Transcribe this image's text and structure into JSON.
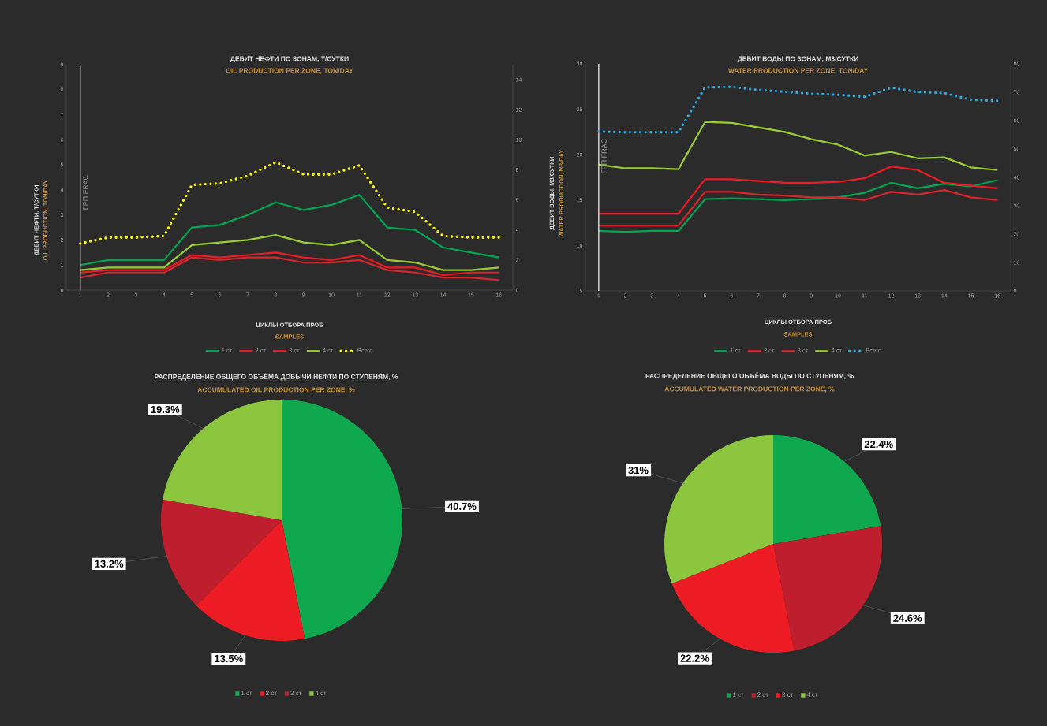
{
  "chart_data": [
    {
      "type": "line",
      "title": "ДЕБИТ НЕФТИ ПО ЗОНАМ, Т/СУТКИ",
      "subtitle": "OIL PRODUCTION PER ZONE, TON/DAY",
      "xlabel": "ЦИКЛЫ ОТБОРА ПРОБ",
      "ylabel": "ДЕБИТ НЕФТИ, Т/СУТКИ",
      "annotations": [
        "OIL PRODUCTION, TON/DAY",
        "SAMPLES"
      ],
      "x": [
        1,
        2,
        3,
        4,
        5,
        6,
        7,
        8,
        9,
        10,
        11,
        12,
        13,
        14,
        15,
        16
      ],
      "xlim": [
        0.5,
        16.5
      ],
      "xticks": [
        1,
        2,
        3,
        4,
        5,
        6,
        7,
        8,
        9,
        10,
        11,
        12,
        13,
        14,
        15,
        16
      ],
      "ylim": [
        0,
        9
      ],
      "yticks": [
        0,
        1,
        2,
        3,
        4,
        5,
        6,
        7,
        8,
        9
      ],
      "y2lim": [
        0,
        15
      ],
      "y2ticks": [
        0,
        2,
        4,
        6,
        8,
        10,
        12,
        14
      ],
      "series": [
        {
          "name": "1 ст",
          "color": "#00a650",
          "values": [
            1.0,
            1.2,
            1.2,
            1.2,
            2.5,
            2.6,
            3.0,
            3.5,
            3.2,
            3.4,
            3.8,
            2.5,
            2.4,
            1.7,
            1.5,
            1.3
          ]
        },
        {
          "name": "2 ст",
          "color": "#ed1c24",
          "values": [
            0.7,
            0.8,
            0.8,
            0.8,
            1.4,
            1.3,
            1.4,
            1.5,
            1.3,
            1.2,
            1.4,
            0.9,
            0.9,
            0.6,
            0.7,
            0.7
          ]
        },
        {
          "name": "3 ст",
          "color": "#d7262c",
          "values": [
            0.5,
            0.7,
            0.7,
            0.7,
            1.3,
            1.2,
            1.3,
            1.3,
            1.1,
            1.1,
            1.2,
            0.8,
            0.7,
            0.5,
            0.5,
            0.4
          ]
        },
        {
          "name": "4 ст",
          "color": "#9acd32",
          "values": [
            0.8,
            0.9,
            0.9,
            0.9,
            1.8,
            1.9,
            2.0,
            2.2,
            1.9,
            1.8,
            2.0,
            1.2,
            1.1,
            0.8,
            0.8,
            0.9
          ]
        },
        {
          "name": "Всего",
          "color": "#ffff00",
          "axis": "y2",
          "line_style": "dotted",
          "values": [
            3.1,
            3.5,
            3.5,
            3.6,
            7.0,
            7.1,
            7.6,
            8.5,
            7.7,
            7.7,
            8.3,
            5.5,
            5.2,
            3.6,
            3.5,
            3.5
          ]
        }
      ],
      "ref_lines": [
        {
          "axis": "x",
          "value": 1,
          "label": "ГРП FRAC",
          "color": "#ffffff"
        }
      ],
      "legend": "bottom"
    },
    {
      "type": "line",
      "title": "ДЕБИТ ВОДЫ ПО ЗОНАМ, М3/СУТКИ",
      "subtitle": "WATER PRODUCTION PER ZONE, TON/DAY",
      "xlabel": "ЦИКЛЫ ОТБОРА ПРОБ",
      "ylabel": "ДЕБИТ ВОДЫ, М3/СУТКИ",
      "annotations": [
        "WATER PRODUCTION, M3/DAY",
        "SAMPLES"
      ],
      "x": [
        1,
        2,
        3,
        4,
        5,
        6,
        7,
        8,
        9,
        10,
        11,
        12,
        13,
        14,
        15,
        16
      ],
      "xlim": [
        0.5,
        16.5
      ],
      "xticks": [
        1,
        2,
        3,
        4,
        5,
        6,
        7,
        8,
        9,
        10,
        11,
        12,
        13,
        14,
        15,
        16
      ],
      "ylim": [
        5,
        30
      ],
      "yticks": [
        5,
        10,
        15,
        20,
        25,
        30
      ],
      "y2lim": [
        0,
        80
      ],
      "y2ticks": [
        0,
        10,
        20,
        30,
        40,
        50,
        60,
        70,
        80
      ],
      "series": [
        {
          "name": "1 ст",
          "color": "#00a650",
          "values": [
            11.6,
            11.5,
            11.6,
            11.6,
            15.1,
            15.2,
            15.1,
            15.0,
            15.1,
            15.3,
            15.8,
            16.9,
            16.3,
            16.8,
            16.5,
            17.2
          ]
        },
        {
          "name": "2 ст",
          "color": "#ed1c24",
          "values": [
            13.5,
            13.5,
            13.5,
            13.5,
            17.3,
            17.3,
            17.1,
            16.9,
            16.9,
            17.0,
            17.4,
            18.7,
            18.3,
            16.9,
            16.6,
            16.3
          ]
        },
        {
          "name": "3 ст",
          "color": "#d7262c",
          "values": [
            12.2,
            12.2,
            12.2,
            12.2,
            15.9,
            15.9,
            15.6,
            15.5,
            15.3,
            15.3,
            15.0,
            15.9,
            15.6,
            16.1,
            15.3,
            15.0
          ]
        },
        {
          "name": "4 ст",
          "color": "#9acd32",
          "values": [
            18.9,
            18.5,
            18.5,
            18.4,
            23.6,
            23.5,
            23.0,
            22.5,
            21.7,
            21.1,
            19.9,
            20.3,
            19.6,
            19.7,
            18.6,
            18.3
          ]
        },
        {
          "name": "Всего",
          "color": "#29abe2",
          "axis": "y2",
          "line_style": "dotted",
          "values": [
            56.2,
            55.9,
            55.9,
            55.9,
            71.7,
            71.9,
            70.8,
            70.2,
            69.5,
            69.1,
            68.4,
            71.6,
            70.1,
            69.7,
            67.4,
            67.0
          ]
        }
      ],
      "ref_lines": [
        {
          "axis": "x",
          "value": 1,
          "label": "ГРП FRAC",
          "color": "#ffffff"
        }
      ],
      "legend": "bottom"
    },
    {
      "type": "pie",
      "title": "РАСПРЕДЕЛЕНИЕ ОБЩЕГО ОБЪЁМА ДОБЫЧИ НЕФТИ ПО СТУПЕНЯМ, %",
      "subtitle": "ACCUMULATED OIL PRODUCTION PER ZONE, %",
      "categories": [
        "1 ст",
        "2 ст",
        "3 ст",
        "4 ст"
      ],
      "values": [
        40.7,
        13.5,
        13.2,
        19.3
      ],
      "value_labels": [
        "40.7%",
        "13.5%",
        "13.2%",
        "19.3%"
      ],
      "colors": [
        "#10a84f",
        "#ed1c24",
        "#be1e2d",
        "#8cc63f"
      ],
      "legend": "bottom"
    },
    {
      "type": "pie",
      "title": "РАСПРЕДЕЛЕНИЕ ОБЩЕГО ОБЪЁМА ВОДЫ ПО СТУПЕНЯМ, %",
      "subtitle": "ACCUMULATED WATER PRODUCTION PER ZONE, %",
      "categories": [
        "1 ст",
        "2 ст",
        "3 ст",
        "4 ст"
      ],
      "values": [
        22.4,
        24.6,
        22.2,
        31
      ],
      "value_labels": [
        "22.4%",
        "24.6%",
        "22.2%",
        "31%"
      ],
      "colors": [
        "#10a84f",
        "#be1e2d",
        "#ed1c24",
        "#8cc63f"
      ],
      "legend": "bottom"
    }
  ]
}
